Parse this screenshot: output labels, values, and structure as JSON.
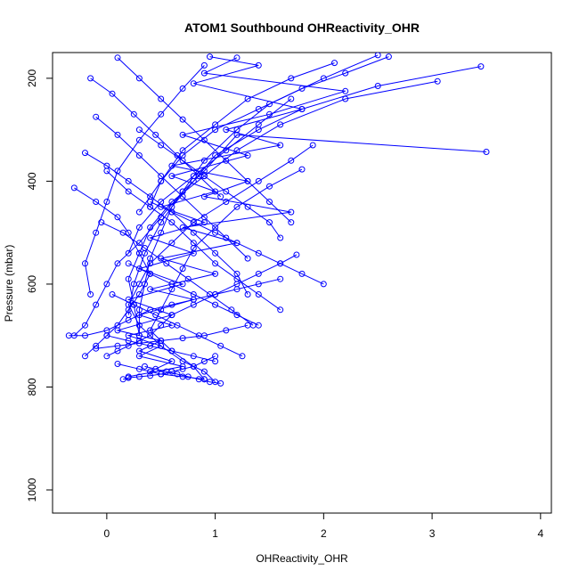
{
  "chart_data": {
    "type": "line",
    "title": "ATOM1 Southbound OHReactivity_OHR",
    "xlabel": "OHReactivity_OHR",
    "ylabel": "Pressure (mbar)",
    "xlim": [
      -0.5,
      4.1
    ],
    "ylim": [
      1045,
      150
    ],
    "y_reversed": true,
    "x_ticks": [
      0,
      1,
      2,
      3,
      4
    ],
    "y_ticks": [
      200,
      400,
      600,
      800,
      1000
    ],
    "marker": "open-circle",
    "grid": false,
    "colors": {
      "series": "#0000ff",
      "axis": "#000000"
    },
    "series": [
      {
        "x": [
          0.95,
          1.4,
          0.8,
          1.8,
          1.1,
          1.6,
          0.6,
          1.3,
          0.9,
          1.7,
          0.7,
          1.2,
          0.5,
          1.0,
          0.4,
          0.8,
          0.3,
          0.6,
          0.2,
          0.5,
          0.3,
          0.7,
          0.2
        ],
        "y": [
          158,
          175,
          210,
          260,
          300,
          330,
          370,
          400,
          430,
          460,
          490,
          520,
          550,
          580,
          610,
          630,
          660,
          680,
          700,
          720,
          740,
          760,
          780
        ]
      },
      {
        "x": [
          1.2,
          0.9,
          2.2,
          1.5,
          0.7,
          1.3,
          0.6,
          1.0,
          0.5,
          0.9,
          0.4,
          0.8,
          0.3,
          0.7,
          0.2,
          0.6,
          0.1,
          0.5,
          0.3,
          0.6,
          0.4
        ],
        "y": [
          160,
          190,
          225,
          270,
          310,
          350,
          390,
          420,
          450,
          480,
          510,
          540,
          570,
          600,
          630,
          660,
          690,
          710,
          730,
          750,
          770
        ]
      },
      {
        "x": [
          3.45,
          2.5,
          1.8,
          1.4,
          1.0,
          0.8,
          0.6,
          0.5,
          0.4,
          0.35,
          0.3,
          0.3
        ],
        "y": [
          177,
          215,
          260,
          300,
          350,
          400,
          450,
          500,
          550,
          600,
          650,
          700
        ]
      },
      {
        "x": [
          3.5,
          1.2,
          0.9,
          0.7,
          0.5,
          0.3,
          0.1,
          0.0,
          -0.1,
          -0.2,
          -0.3
        ],
        "y": [
          343,
          310,
          380,
          420,
          470,
          520,
          560,
          600,
          640,
          680,
          700
        ]
      },
      {
        "x": [
          2.5,
          2.0,
          1.5,
          1.2,
          0.9,
          0.7,
          0.5,
          0.35,
          0.25,
          0.2
        ],
        "y": [
          155,
          200,
          250,
          300,
          360,
          420,
          480,
          540,
          600,
          660
        ]
      },
      {
        "x": [
          3.05,
          2.2,
          1.6,
          1.2,
          0.9,
          0.6,
          0.4,
          0.3,
          0.2,
          0.25,
          0.3
        ],
        "y": [
          206,
          240,
          290,
          340,
          390,
          440,
          490,
          540,
          590,
          640,
          700
        ]
      },
      {
        "x": [
          1.9,
          1.7,
          1.4,
          1.1,
          0.8,
          0.6,
          0.4,
          0.3,
          0.2,
          0.3,
          0.5,
          0.7,
          0.9,
          1.0
        ],
        "y": [
          330,
          360,
          400,
          440,
          480,
          520,
          560,
          600,
          640,
          680,
          720,
          750,
          770,
          790
        ]
      },
      {
        "x": [
          1.8,
          1.5,
          1.2,
          1.0,
          0.8,
          0.7,
          0.6,
          0.5,
          0.4,
          0.6,
          0.8,
          0.9
        ],
        "y": [
          377,
          410,
          450,
          490,
          530,
          570,
          610,
          650,
          690,
          730,
          760,
          785
        ]
      },
      {
        "x": [
          -0.3,
          -0.1,
          0.1,
          0.2,
          0.3,
          0.4,
          0.3,
          0.2,
          0.1,
          0.0,
          -0.1,
          -0.2
        ],
        "y": [
          413,
          440,
          470,
          500,
          540,
          580,
          620,
          650,
          680,
          700,
          720,
          740
        ]
      },
      {
        "x": [
          1.75,
          1.6,
          1.4,
          1.2,
          1.0,
          0.8,
          0.6,
          0.5,
          0.4,
          0.3,
          0.2,
          0.1,
          0.0
        ],
        "y": [
          543,
          560,
          580,
          600,
          620,
          640,
          660,
          680,
          700,
          710,
          720,
          730,
          740
        ]
      },
      {
        "x": [
          1.6,
          1.4,
          1.2,
          1.0,
          0.8,
          0.6,
          0.4,
          0.2,
          0.0,
          -0.2,
          -0.35
        ],
        "y": [
          590,
          600,
          610,
          620,
          630,
          640,
          650,
          670,
          690,
          700,
          700
        ]
      },
      {
        "x": [
          1.3,
          1.1,
          0.9,
          0.7,
          0.5,
          0.3,
          0.1,
          -0.1
        ],
        "y": [
          680,
          690,
          700,
          705,
          710,
          715,
          720,
          725
        ]
      },
      {
        "x": [
          1.0,
          0.9,
          0.8,
          0.7,
          0.6,
          0.5,
          0.4,
          0.3,
          0.2,
          0.15
        ],
        "y": [
          740,
          750,
          760,
          765,
          770,
          775,
          778,
          780,
          782,
          785
        ]
      },
      {
        "x": [
          1.05,
          0.95,
          0.85,
          0.75,
          0.65,
          0.55,
          0.45,
          0.35
        ],
        "y": [
          793,
          790,
          785,
          780,
          775,
          770,
          765,
          760
        ]
      },
      {
        "x": [
          0.0,
          0.2,
          0.4,
          0.6,
          0.8,
          1.0,
          1.2,
          1.4,
          1.6
        ],
        "y": [
          380,
          420,
          450,
          480,
          520,
          560,
          590,
          620,
          650
        ]
      },
      {
        "x": [
          -0.2,
          0.0,
          0.2,
          0.4,
          0.6,
          0.8,
          1.0,
          1.2,
          1.3
        ],
        "y": [
          345,
          370,
          400,
          430,
          460,
          500,
          540,
          580,
          620
        ]
      },
      {
        "x": [
          -0.1,
          0.1,
          0.3,
          0.5,
          0.7,
          0.9,
          1.1,
          1.3
        ],
        "y": [
          275,
          310,
          350,
          390,
          430,
          470,
          510,
          550
        ]
      },
      {
        "x": [
          -0.15,
          0.05,
          0.25,
          0.45,
          0.65,
          0.85,
          1.05
        ],
        "y": [
          200,
          230,
          270,
          310,
          350,
          390,
          430
        ]
      },
      {
        "x": [
          0.1,
          0.3,
          0.5,
          0.7,
          0.9,
          1.1,
          1.3,
          1.5,
          1.7
        ],
        "y": [
          160,
          200,
          240,
          280,
          320,
          360,
          400,
          440,
          480
        ]
      },
      {
        "x": [
          1.7,
          1.4,
          1.1,
          0.8,
          0.5,
          0.3,
          0.2
        ],
        "y": [
          240,
          290,
          340,
          390,
          440,
          490,
          540
        ]
      },
      {
        "x": [
          2.6,
          2.2,
          1.8,
          1.4,
          1.0,
          0.7,
          0.5,
          0.4
        ],
        "y": [
          158,
          190,
          220,
          260,
          300,
          350,
          400,
          450
        ]
      },
      {
        "x": [
          2.1,
          1.7,
          1.3,
          1.0,
          0.7,
          0.5,
          0.3
        ],
        "y": [
          170,
          200,
          240,
          290,
          340,
          400,
          460
        ]
      },
      {
        "x": [
          0.9,
          0.7,
          0.5,
          0.3,
          0.1,
          0.0,
          -0.1,
          -0.2,
          -0.15
        ],
        "y": [
          175,
          220,
          270,
          320,
          380,
          440,
          500,
          560,
          620
        ]
      },
      {
        "x": [
          0.3,
          0.5,
          0.7,
          0.9,
          1.1,
          1.3,
          1.5,
          1.6
        ],
        "y": [
          300,
          330,
          360,
          390,
          420,
          450,
          480,
          510
        ]
      },
      {
        "x": [
          0.4,
          0.6,
          0.8,
          1.0,
          1.2,
          1.4,
          1.6,
          1.8,
          2.0
        ],
        "y": [
          440,
          460,
          480,
          500,
          520,
          540,
          560,
          580,
          600
        ]
      },
      {
        "x": [
          0.2,
          0.4,
          0.6,
          0.8,
          1.0,
          1.2,
          1.4
        ],
        "y": [
          560,
          580,
          600,
          620,
          640,
          660,
          680
        ]
      },
      {
        "x": [
          0.05,
          0.25,
          0.45,
          0.65,
          0.85,
          1.05,
          1.25
        ],
        "y": [
          620,
          640,
          660,
          680,
          700,
          720,
          740
        ]
      },
      {
        "x": [
          0.0,
          0.2,
          0.4,
          0.6,
          0.8,
          1.0
        ],
        "y": [
          700,
          710,
          720,
          730,
          740,
          750
        ]
      },
      {
        "x": [
          0.1,
          0.3,
          0.5,
          0.7,
          0.9
        ],
        "y": [
          755,
          765,
          775,
          780,
          785
        ]
      },
      {
        "x": [
          -0.05,
          0.15,
          0.35,
          0.55,
          0.75,
          0.95,
          1.15,
          1.35
        ],
        "y": [
          480,
          500,
          530,
          560,
          590,
          620,
          650,
          680
        ]
      }
    ]
  }
}
